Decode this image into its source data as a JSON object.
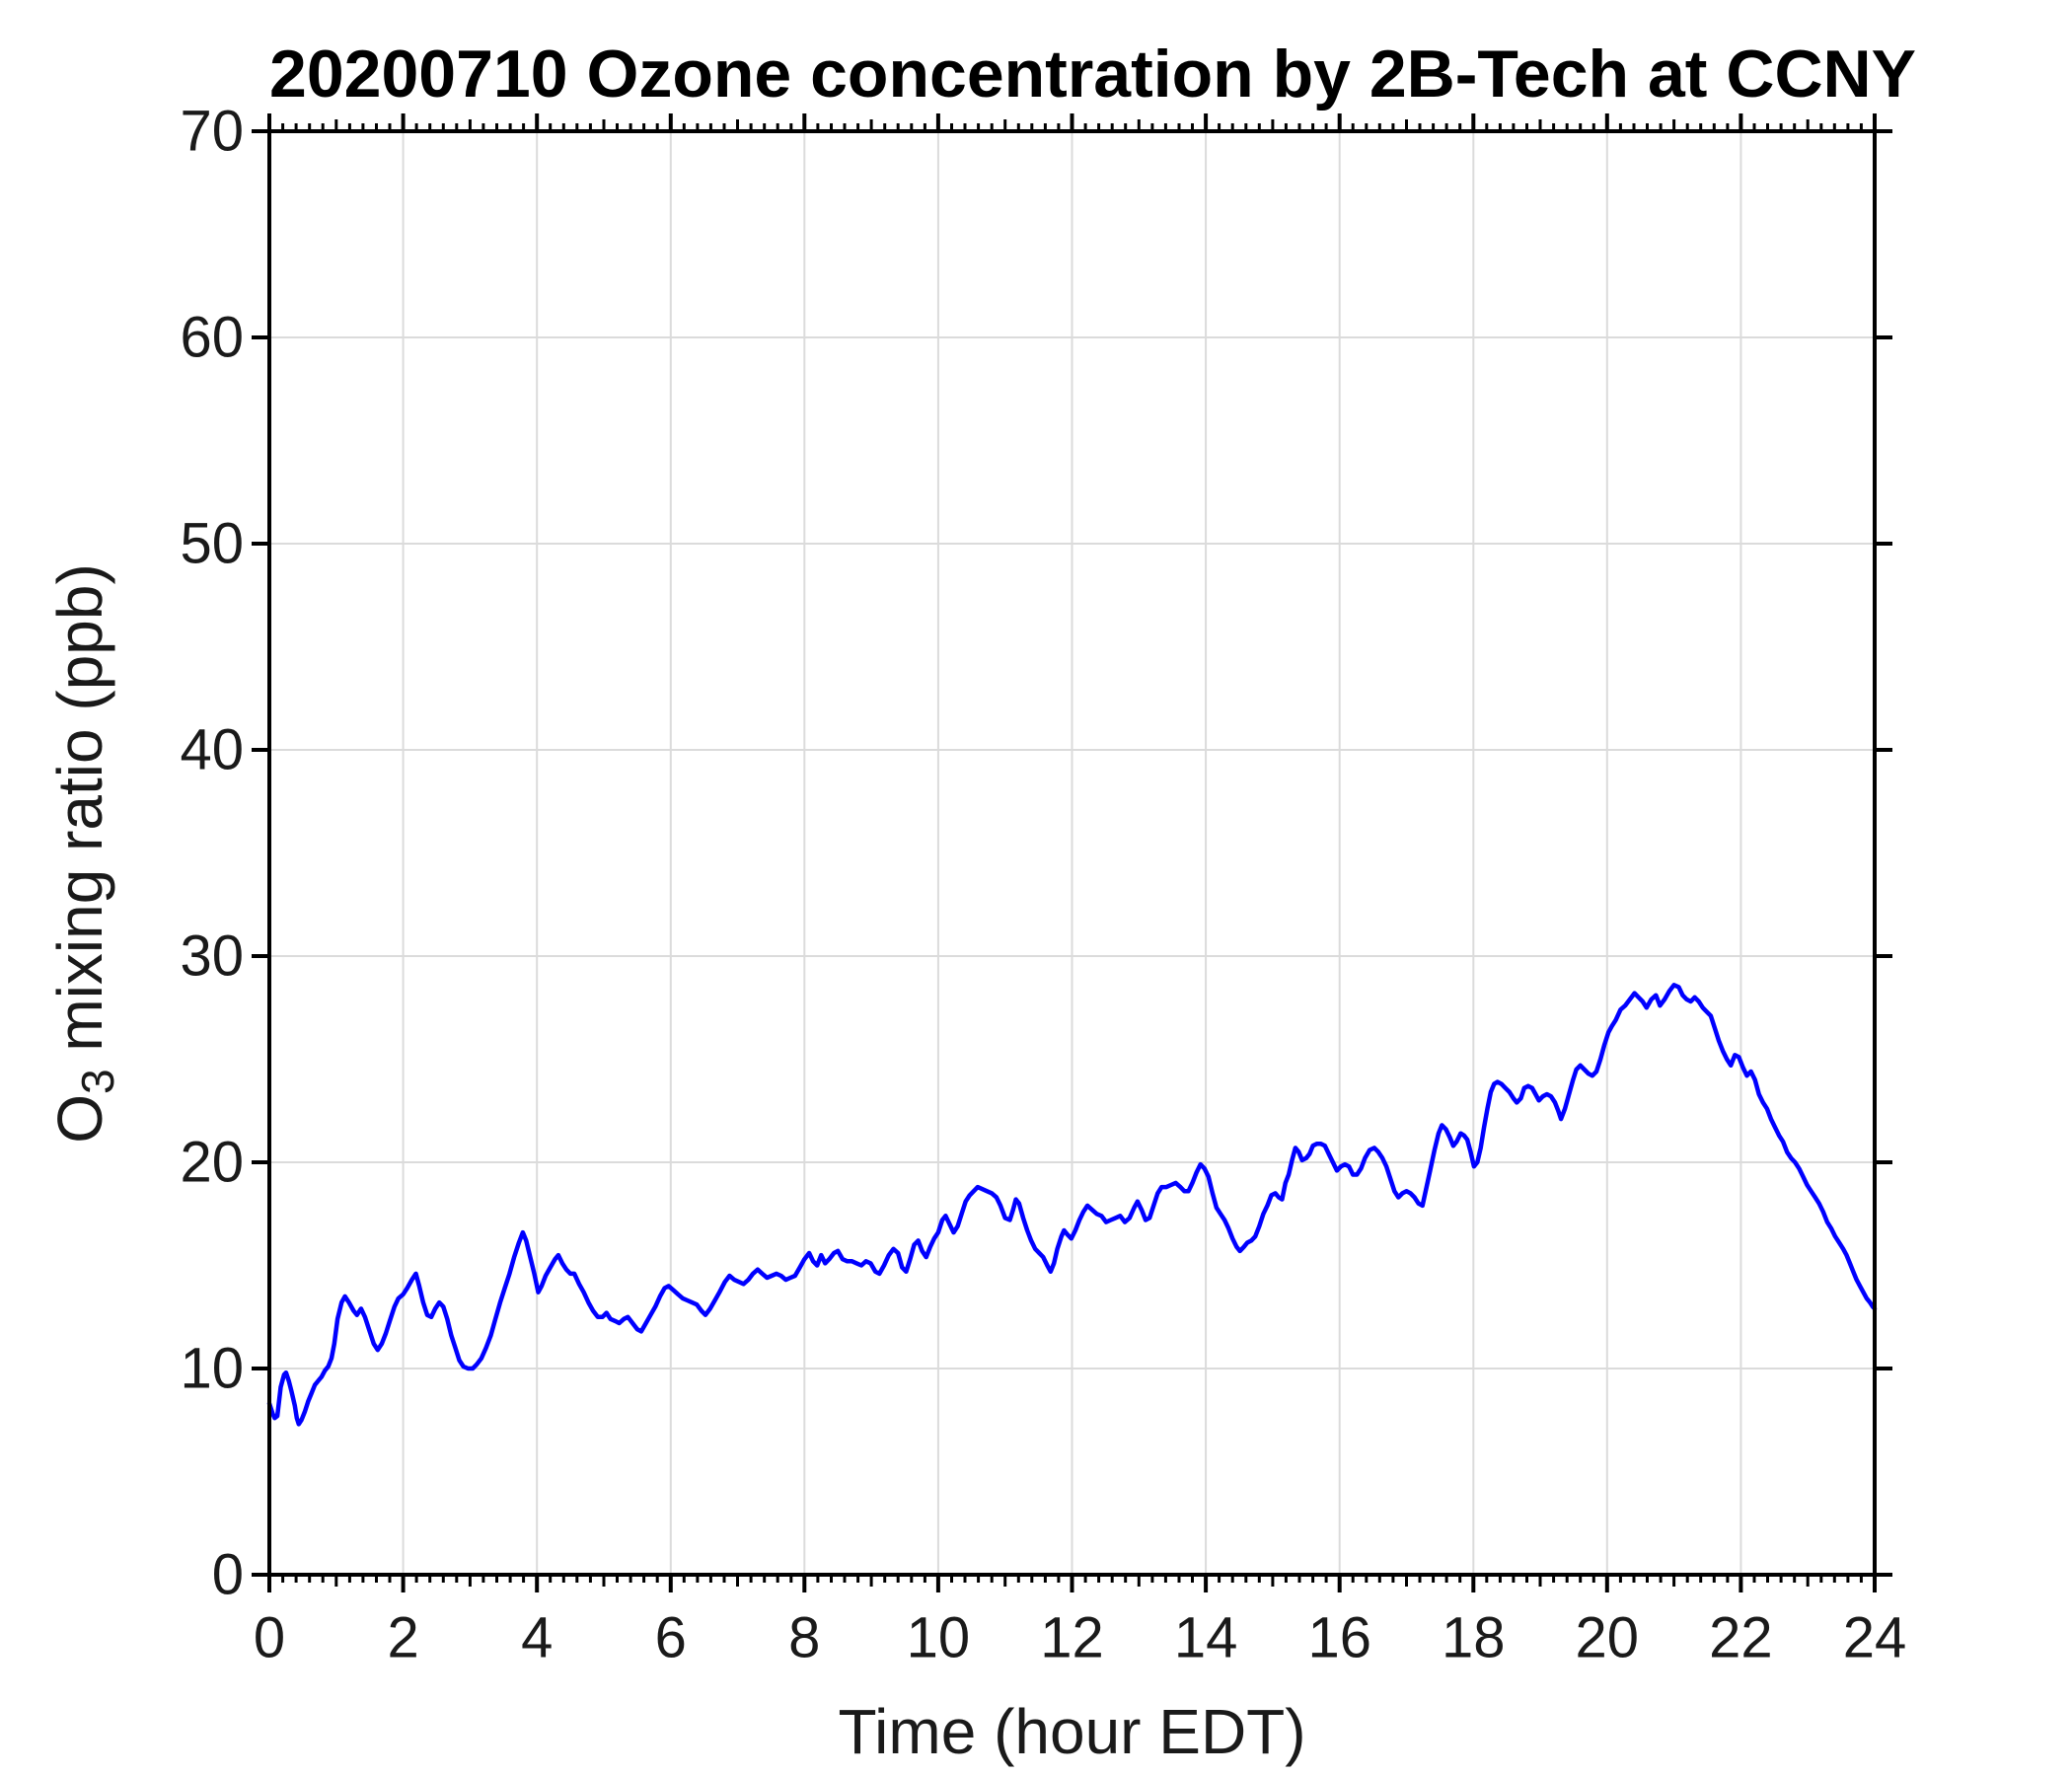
{
  "chart_data": {
    "type": "line",
    "title": "20200710 Ozone concentration by 2B-Tech at CCNY",
    "xlabel": "Time (hour EDT)",
    "ylabel": "O3 mixing ratio (ppb)",
    "ylabel_parts": {
      "prefix": "O",
      "subscript": "3",
      "suffix": " mixing ratio (ppb)"
    },
    "xlim": [
      0,
      24
    ],
    "ylim": [
      0,
      70
    ],
    "xticks": [
      0,
      2,
      4,
      6,
      8,
      10,
      12,
      14,
      16,
      18,
      20,
      22,
      24
    ],
    "yticks": [
      0,
      10,
      20,
      30,
      40,
      50,
      60,
      70
    ],
    "x_minor_step": 0.2,
    "x_medium_step": 1,
    "grid": true,
    "legend": null,
    "line_color": "#0000FF",
    "grid_color": "#DBDBDB",
    "axis_color": "#000000",
    "tick_label_color": "#1a1a1a",
    "series": [
      {
        "name": "O3 mixing ratio",
        "x": [
          0.0,
          0.05,
          0.08,
          0.12,
          0.17,
          0.22,
          0.25,
          0.29,
          0.33,
          0.38,
          0.41,
          0.44,
          0.48,
          0.53,
          0.58,
          0.63,
          0.68,
          0.73,
          0.78,
          0.83,
          0.88,
          0.93,
          0.97,
          1.02,
          1.08,
          1.13,
          1.19,
          1.26,
          1.31,
          1.37,
          1.43,
          1.5,
          1.56,
          1.62,
          1.68,
          1.74,
          1.8,
          1.87,
          1.93,
          2.0,
          2.06,
          2.13,
          2.19,
          2.24,
          2.3,
          2.36,
          2.42,
          2.48,
          2.54,
          2.6,
          2.66,
          2.72,
          2.78,
          2.84,
          2.9,
          2.97,
          3.04,
          3.1,
          3.17,
          3.24,
          3.31,
          3.38,
          3.45,
          3.52,
          3.59,
          3.66,
          3.73,
          3.79,
          3.84,
          3.9,
          3.96,
          4.02,
          4.07,
          4.13,
          4.2,
          4.27,
          4.32,
          4.38,
          4.44,
          4.5,
          4.56,
          4.63,
          4.7,
          4.77,
          4.84,
          4.91,
          4.98,
          5.04,
          5.1,
          5.17,
          5.23,
          5.3,
          5.36,
          5.43,
          5.5,
          5.56,
          5.63,
          5.7,
          5.77,
          5.84,
          5.91,
          5.97,
          6.04,
          6.11,
          6.18,
          6.25,
          6.32,
          6.39,
          6.46,
          6.52,
          6.59,
          6.66,
          6.73,
          6.81,
          6.88,
          6.95,
          7.02,
          7.09,
          7.16,
          7.23,
          7.3,
          7.37,
          7.44,
          7.51,
          7.58,
          7.65,
          7.72,
          7.79,
          7.86,
          7.93,
          8.0,
          8.07,
          8.13,
          8.19,
          8.25,
          8.31,
          8.37,
          8.44,
          8.5,
          8.57,
          8.64,
          8.71,
          8.78,
          8.85,
          8.92,
          8.99,
          9.06,
          9.12,
          9.19,
          9.26,
          9.33,
          9.4,
          9.46,
          9.52,
          9.58,
          9.64,
          9.7,
          9.76,
          9.82,
          9.88,
          9.94,
          10.0,
          10.06,
          10.11,
          10.17,
          10.23,
          10.29,
          10.35,
          10.41,
          10.47,
          10.53,
          10.59,
          10.66,
          10.73,
          10.8,
          10.87,
          10.93,
          11.0,
          11.07,
          11.12,
          11.16,
          11.21,
          11.27,
          11.33,
          11.39,
          11.45,
          11.51,
          11.57,
          11.63,
          11.68,
          11.73,
          11.78,
          11.84,
          11.88,
          11.93,
          11.99,
          12.05,
          12.11,
          12.17,
          12.23,
          12.3,
          12.37,
          12.44,
          12.51,
          12.58,
          12.65,
          12.72,
          12.79,
          12.86,
          12.93,
          12.98,
          13.04,
          13.1,
          13.16,
          13.22,
          13.28,
          13.34,
          13.41,
          13.48,
          13.55,
          13.62,
          13.68,
          13.74,
          13.8,
          13.86,
          13.92,
          13.98,
          14.04,
          14.1,
          14.16,
          14.22,
          14.28,
          14.34,
          14.4,
          14.46,
          14.51,
          14.57,
          14.62,
          14.68,
          14.74,
          14.8,
          14.86,
          14.92,
          14.98,
          15.04,
          15.09,
          15.14,
          15.19,
          15.24,
          15.29,
          15.34,
          15.39,
          15.44,
          15.5,
          15.55,
          15.6,
          15.66,
          15.72,
          15.78,
          15.84,
          15.9,
          15.96,
          16.02,
          16.08,
          16.14,
          16.2,
          16.26,
          16.32,
          16.38,
          16.45,
          16.52,
          16.58,
          16.64,
          16.7,
          16.76,
          16.82,
          16.88,
          16.94,
          17.0,
          17.06,
          17.12,
          17.18,
          17.24,
          17.3,
          17.36,
          17.42,
          17.48,
          17.53,
          17.59,
          17.65,
          17.7,
          17.75,
          17.81,
          17.86,
          17.91,
          17.96,
          18.01,
          18.06,
          18.11,
          18.16,
          18.21,
          18.26,
          18.31,
          18.36,
          18.42,
          18.48,
          18.54,
          18.6,
          18.65,
          18.71,
          18.76,
          18.82,
          18.88,
          18.93,
          18.98,
          19.04,
          19.1,
          19.16,
          19.22,
          19.27,
          19.31,
          19.37,
          19.43,
          19.49,
          19.54,
          19.6,
          19.66,
          19.72,
          19.78,
          19.84,
          19.9,
          19.96,
          20.02,
          20.07,
          20.13,
          20.2,
          20.27,
          20.34,
          20.41,
          20.47,
          20.53,
          20.59,
          20.66,
          20.73,
          20.79,
          20.86,
          20.93,
          21.0,
          21.07,
          21.13,
          21.19,
          21.25,
          21.31,
          21.37,
          21.43,
          21.49,
          21.55,
          21.61,
          21.67,
          21.73,
          21.79,
          21.85,
          21.91,
          21.97,
          22.03,
          22.09,
          22.15,
          22.21,
          22.27,
          22.33,
          22.39,
          22.45,
          22.51,
          22.57,
          22.63,
          22.69,
          22.75,
          22.81,
          22.87,
          22.93,
          22.99,
          23.05,
          23.11,
          23.17,
          23.23,
          23.29,
          23.35,
          23.41,
          23.47,
          23.53,
          23.58,
          23.63,
          23.68,
          23.73,
          23.78,
          23.83,
          23.88,
          23.93,
          23.97,
          24.0
        ],
        "y": [
          8.3,
          7.8,
          7.6,
          7.7,
          9.1,
          9.7,
          9.8,
          9.4,
          8.9,
          8.2,
          7.6,
          7.3,
          7.5,
          7.9,
          8.4,
          8.8,
          9.2,
          9.4,
          9.6,
          9.9,
          10.1,
          10.5,
          11.2,
          12.4,
          13.2,
          13.5,
          13.2,
          12.8,
          12.6,
          12.9,
          12.5,
          11.8,
          11.2,
          10.9,
          11.2,
          11.7,
          12.3,
          13.0,
          13.4,
          13.6,
          13.9,
          14.3,
          14.6,
          14.0,
          13.2,
          12.6,
          12.5,
          12.9,
          13.2,
          13.0,
          12.4,
          11.6,
          11.0,
          10.4,
          10.1,
          10.0,
          10.0,
          10.2,
          10.5,
          11.0,
          11.6,
          12.4,
          13.2,
          13.9,
          14.6,
          15.4,
          16.1,
          16.6,
          16.2,
          15.4,
          14.6,
          13.7,
          14.0,
          14.5,
          14.9,
          15.3,
          15.5,
          15.1,
          14.8,
          14.6,
          14.6,
          14.1,
          13.7,
          13.2,
          12.8,
          12.5,
          12.5,
          12.7,
          12.4,
          12.3,
          12.2,
          12.4,
          12.5,
          12.2,
          11.9,
          11.8,
          12.2,
          12.6,
          13.0,
          13.5,
          13.9,
          14.0,
          13.8,
          13.6,
          13.4,
          13.3,
          13.2,
          13.1,
          12.8,
          12.6,
          12.9,
          13.3,
          13.7,
          14.2,
          14.5,
          14.3,
          14.2,
          14.1,
          14.3,
          14.6,
          14.8,
          14.6,
          14.4,
          14.5,
          14.6,
          14.5,
          14.3,
          14.4,
          14.5,
          14.9,
          15.3,
          15.6,
          15.2,
          15.0,
          15.5,
          15.1,
          15.3,
          15.6,
          15.7,
          15.3,
          15.2,
          15.2,
          15.1,
          15.0,
          15.2,
          15.1,
          14.7,
          14.6,
          15.0,
          15.5,
          15.8,
          15.6,
          14.9,
          14.7,
          15.3,
          16.0,
          16.2,
          15.7,
          15.4,
          15.9,
          16.3,
          16.6,
          17.2,
          17.4,
          17.0,
          16.6,
          16.9,
          17.5,
          18.1,
          18.4,
          18.6,
          18.8,
          18.7,
          18.6,
          18.5,
          18.3,
          17.9,
          17.3,
          17.2,
          17.7,
          18.2,
          18.0,
          17.3,
          16.7,
          16.2,
          15.8,
          15.6,
          15.4,
          15.0,
          14.7,
          15.1,
          15.8,
          16.4,
          16.7,
          16.5,
          16.3,
          16.7,
          17.2,
          17.6,
          17.9,
          17.7,
          17.5,
          17.4,
          17.1,
          17.2,
          17.3,
          17.4,
          17.1,
          17.3,
          17.8,
          18.1,
          17.7,
          17.2,
          17.3,
          17.9,
          18.5,
          18.8,
          18.8,
          18.9,
          19.0,
          18.8,
          18.6,
          18.6,
          19.0,
          19.5,
          19.9,
          19.7,
          19.3,
          18.5,
          17.8,
          17.5,
          17.2,
          16.8,
          16.3,
          15.9,
          15.7,
          15.9,
          16.1,
          16.2,
          16.4,
          16.9,
          17.5,
          17.9,
          18.4,
          18.5,
          18.3,
          18.2,
          19.0,
          19.4,
          20.1,
          20.7,
          20.5,
          20.1,
          20.2,
          20.4,
          20.8,
          20.9,
          20.9,
          20.8,
          20.4,
          20.0,
          19.6,
          19.8,
          19.9,
          19.8,
          19.4,
          19.4,
          19.7,
          20.2,
          20.6,
          20.7,
          20.5,
          20.2,
          19.8,
          19.2,
          18.6,
          18.3,
          18.5,
          18.6,
          18.5,
          18.3,
          18.0,
          17.9,
          18.8,
          19.7,
          20.6,
          21.4,
          21.8,
          21.6,
          21.2,
          20.8,
          21.0,
          21.4,
          21.3,
          21.1,
          20.5,
          19.8,
          20.0,
          20.7,
          21.7,
          22.6,
          23.4,
          23.8,
          23.9,
          23.8,
          23.6,
          23.4,
          23.1,
          22.9,
          23.1,
          23.6,
          23.7,
          23.6,
          23.3,
          23.0,
          23.2,
          23.3,
          23.2,
          22.9,
          22.5,
          22.1,
          22.6,
          23.3,
          24.0,
          24.5,
          24.7,
          24.5,
          24.3,
          24.2,
          24.4,
          25.0,
          25.7,
          26.3,
          26.6,
          26.9,
          27.4,
          27.6,
          27.9,
          28.2,
          28.0,
          27.8,
          27.5,
          27.9,
          28.1,
          27.6,
          27.9,
          28.3,
          28.6,
          28.5,
          28.1,
          27.9,
          27.8,
          28.0,
          27.8,
          27.5,
          27.3,
          27.1,
          26.5,
          25.9,
          25.4,
          25.0,
          24.7,
          25.2,
          25.1,
          24.6,
          24.2,
          24.4,
          24.0,
          23.3,
          22.9,
          22.6,
          22.1,
          21.7,
          21.3,
          21.0,
          20.5,
          20.2,
          20.0,
          19.7,
          19.3,
          18.9,
          18.6,
          18.3,
          18.0,
          17.6,
          17.1,
          16.8,
          16.4,
          16.1,
          15.8,
          15.5,
          15.1,
          14.7,
          14.3,
          14.0,
          13.7,
          13.4,
          13.2,
          13.0,
          12.9
        ]
      }
    ]
  }
}
